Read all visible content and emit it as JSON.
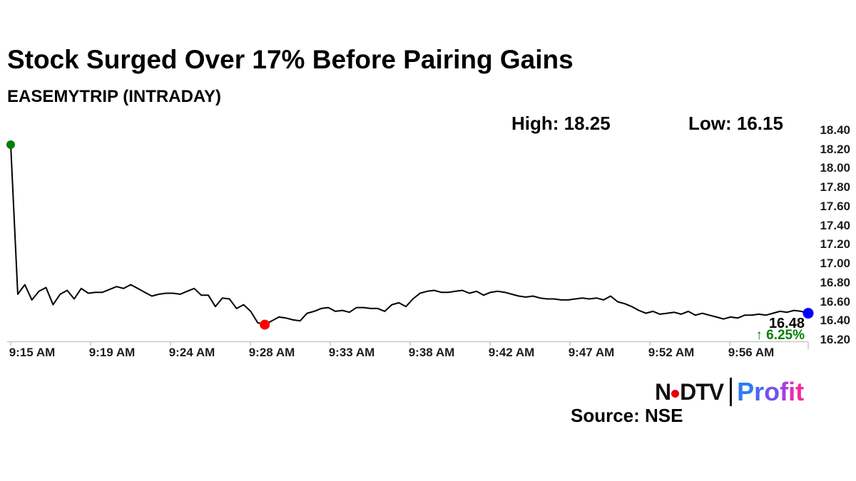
{
  "page": {
    "background": "#ffffff"
  },
  "header": {
    "title": "Stock Surged Over 17% Before Pairing Gains",
    "subtitle": "EASEMYTRIP (INTRADAY)"
  },
  "stats": {
    "high": "High: 18.25",
    "low": "Low: 16.15"
  },
  "chart_data": {
    "type": "line",
    "title": "EASEMYTRIP (INTRADAY)",
    "xlabel": "",
    "ylabel": "",
    "x_tick_labels": [
      "9:15 AM",
      "9:19 AM",
      "9:24 AM",
      "9:28 AM",
      "9:33 AM",
      "9:38 AM",
      "9:42 AM",
      "9:47 AM",
      "9:52 AM",
      "9:56 AM"
    ],
    "y_tick_labels": [
      "18.40",
      "18.20",
      "18.00",
      "17.80",
      "17.60",
      "17.40",
      "17.20",
      "17.00",
      "16.80",
      "16.60",
      "16.40",
      "16.20"
    ],
    "ylim": [
      16.2,
      18.4
    ],
    "grid": false,
    "legend": false,
    "line_color": "#000000",
    "axis_color": "#c8c8c8",
    "tick_label_color": "#1c1c1c",
    "high": 18.25,
    "low": 16.15,
    "open": 18.25,
    "last": 16.48,
    "last_price_label": "16.48",
    "change_label": "↑ 6.25%",
    "change_color": "#008000",
    "markers": {
      "start_color": "#008000",
      "low_color": "#ff0000",
      "end_color": "#0000ff"
    },
    "series": [
      {
        "name": "EASEMYTRIP",
        "values": [
          18.25,
          16.68,
          16.78,
          16.62,
          16.71,
          16.75,
          16.57,
          16.68,
          16.72,
          16.63,
          16.74,
          16.69,
          16.7,
          16.7,
          16.73,
          16.76,
          16.74,
          16.78,
          16.74,
          16.7,
          16.66,
          16.68,
          16.69,
          16.69,
          16.68,
          16.71,
          16.74,
          16.67,
          16.67,
          16.55,
          16.64,
          16.63,
          16.53,
          16.57,
          16.5,
          16.38,
          16.36,
          16.4,
          16.44,
          16.43,
          16.41,
          16.4,
          16.48,
          16.5,
          16.53,
          16.54,
          16.5,
          16.51,
          16.49,
          16.54,
          16.54,
          16.53,
          16.53,
          16.5,
          16.57,
          16.59,
          16.55,
          16.63,
          16.69,
          16.71,
          16.72,
          16.7,
          16.7,
          16.71,
          16.72,
          16.69,
          16.71,
          16.67,
          16.7,
          16.71,
          16.7,
          16.68,
          16.66,
          16.65,
          16.66,
          16.64,
          16.63,
          16.63,
          16.62,
          16.62,
          16.63,
          16.64,
          16.63,
          16.64,
          16.62,
          16.66,
          16.6,
          16.58,
          16.55,
          16.51,
          16.48,
          16.5,
          16.47,
          16.48,
          16.49,
          16.47,
          16.5,
          16.46,
          16.48,
          16.46,
          16.44,
          16.42,
          16.44,
          16.43,
          16.46,
          16.46,
          16.47,
          16.46,
          16.48,
          16.5,
          16.49,
          16.51,
          16.5,
          16.48
        ]
      }
    ]
  },
  "footer": {
    "source": "Source: NSE",
    "brand": {
      "ndtv_part1": "N",
      "ndtv_part2": "DTV",
      "dot_color": "#e60000",
      "separator_color": "#111111",
      "profit": "Profit",
      "profit_colors": [
        "#2f7bf5",
        "#4a66f2",
        "#7450ee",
        "#a83ee0",
        "#e32bb4",
        "#f5289e"
      ]
    }
  }
}
